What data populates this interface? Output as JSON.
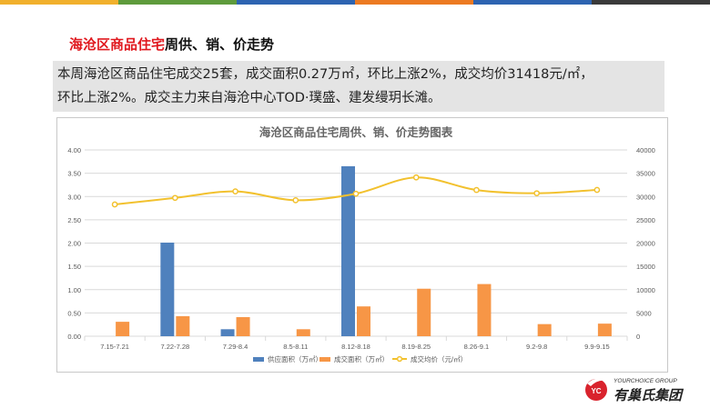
{
  "topbar_colors": [
    "#f1b02c",
    "#5e9b3c",
    "#2d64b1",
    "#ec7a22",
    "#2d64b1",
    "#3a3a3a"
  ],
  "slide": {
    "title_highlight": "海沧区商品住宅",
    "title_rest": "周供、销、价走势",
    "summary_line1": "本周海沧区商品住宅成交25套，成交面积0.27万㎡，环比上涨2%，成交均价31418元/㎡，",
    "summary_line2": "环比上涨2%。成交主力来自海沧中心TOD·璞盛、建发缦玥长滩。"
  },
  "logo": {
    "text_en": "YOURCHOICE GROUP",
    "text_cn": "有巢氏集团",
    "mark_text": "YC"
  },
  "chart_data": {
    "type": "bar",
    "title": "海沧区商品住宅周供、销、价走势图表",
    "categories": [
      "7.15-7.21",
      "7.22-7.28",
      "7.29-8.4",
      "8.5-8.11",
      "8.12-8.18",
      "8.19-8.25",
      "8.26-9.1",
      "9.2-9.8",
      "9.9-9.15"
    ],
    "y_left": {
      "min": 0,
      "max": 4,
      "step": 0.5,
      "tick_labels": [
        "0.00",
        "0.50",
        "1.00",
        "1.50",
        "2.00",
        "2.50",
        "3.00",
        "3.50",
        "4.00"
      ]
    },
    "y_right": {
      "min": 0,
      "max": 40000,
      "step": 5000,
      "tick_labels": [
        "0",
        "5000",
        "10000",
        "15000",
        "20000",
        "25000",
        "30000",
        "35000",
        "40000"
      ]
    },
    "series": [
      {
        "name": "供应面积（万㎡）",
        "type": "bar",
        "axis": "left",
        "color": "#4f81bd",
        "values": [
          0,
          2.01,
          0.15,
          0,
          3.65,
          0,
          0,
          0,
          0
        ]
      },
      {
        "name": "成交面积（万㎡）",
        "type": "bar",
        "axis": "left",
        "color": "#f79646",
        "values": [
          0.31,
          0.43,
          0.41,
          0.15,
          0.64,
          1.02,
          1.12,
          0.26,
          0.27
        ]
      },
      {
        "name": "成交均价（元/㎡）",
        "type": "line",
        "axis": "right",
        "color": "#f2c12e",
        "smooth": true,
        "values": [
          28300,
          29700,
          31100,
          29200,
          30600,
          34100,
          31400,
          30700,
          31418
        ]
      }
    ],
    "legend_position": "bottom",
    "grid": true
  }
}
